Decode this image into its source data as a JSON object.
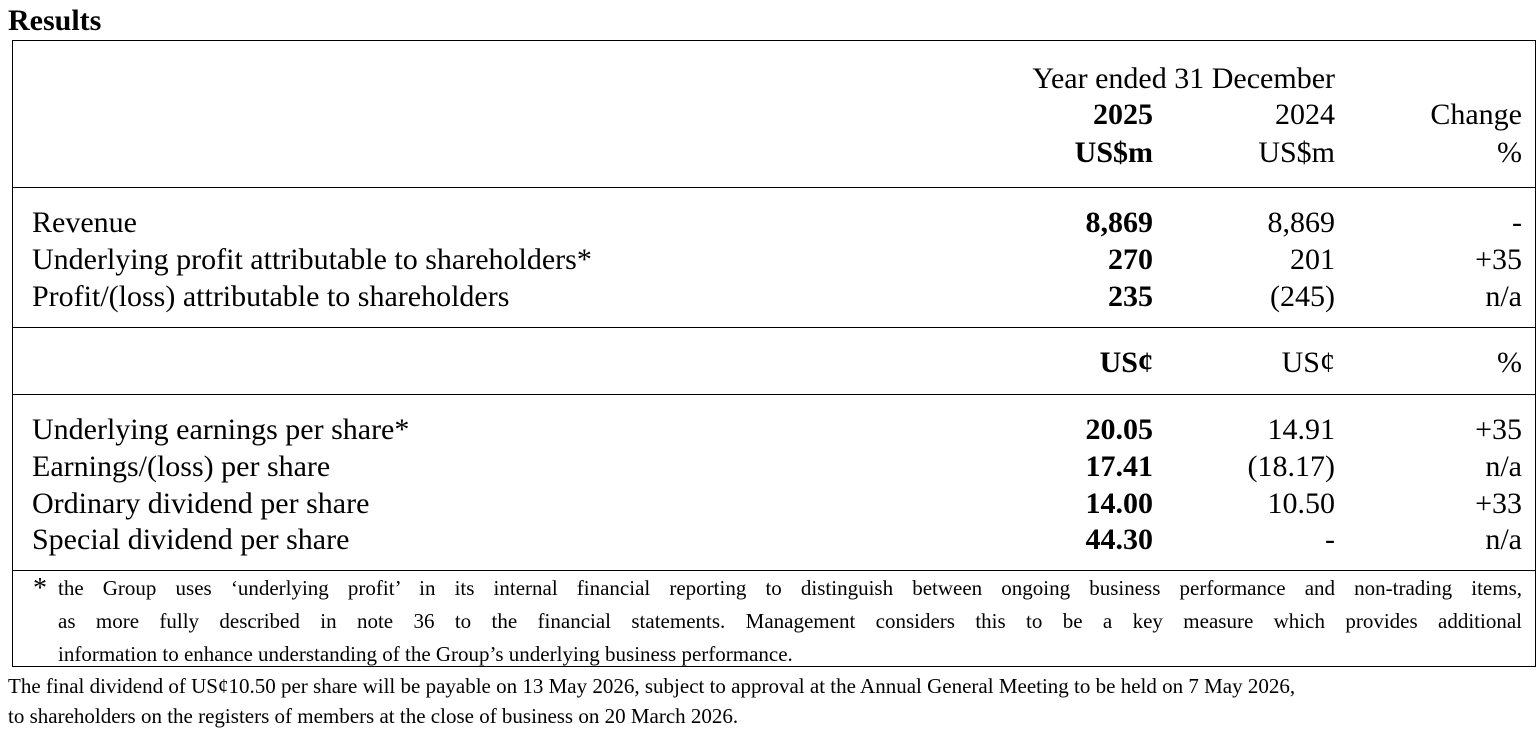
{
  "title": "Results",
  "header": {
    "period": "Year ended 31 December",
    "col_current_year": "2025",
    "col_prior_year": "2024",
    "col_change": "Change",
    "unit_current": "US$m",
    "unit_prior": "US$m",
    "unit_change": "%"
  },
  "profit_rows": [
    {
      "label": "Revenue",
      "current": "8,869",
      "prior": "8,869",
      "change": "-"
    },
    {
      "label": "Underlying profit attributable to shareholders*",
      "current": "270",
      "prior": "201",
      "change": "+35"
    },
    {
      "label": "Profit/(loss) attributable to shareholders",
      "current": "235",
      "prior": "(245)",
      "change": "n/a"
    }
  ],
  "per_share_units": {
    "current": "US¢",
    "prior": "US¢",
    "change": "%"
  },
  "per_share_rows": [
    {
      "label": "Underlying earnings per share*",
      "current": "20.05",
      "prior": "14.91",
      "change": "+35"
    },
    {
      "label": "Earnings/(loss) per share",
      "current": "17.41",
      "prior": "(18.17)",
      "change": "n/a"
    },
    {
      "label": "Ordinary dividend per share",
      "current": "14.00",
      "prior": "10.50",
      "change": "+33"
    },
    {
      "label": "Special dividend per share",
      "current": "44.30",
      "prior": "-",
      "change": "n/a"
    }
  ],
  "footnote": {
    "marker": "*",
    "lines": [
      "the Group uses ‘underlying profit’ in its internal financial reporting to distinguish between ongoing business performance and non-trading items,",
      "as more fully described in note 36 to the financial statements. Management considers this to be a key measure which provides additional",
      "information to enhance understanding of the Group’s underlying business performance."
    ]
  },
  "closing_paragraph": [
    "The final dividend of US¢10.50 per share will be payable on 13 May 2026, subject to approval at the Annual General Meeting to be held on 7 May 2026,",
    "to shareholders on the registers of members at the close of business on 20 March 2026."
  ]
}
